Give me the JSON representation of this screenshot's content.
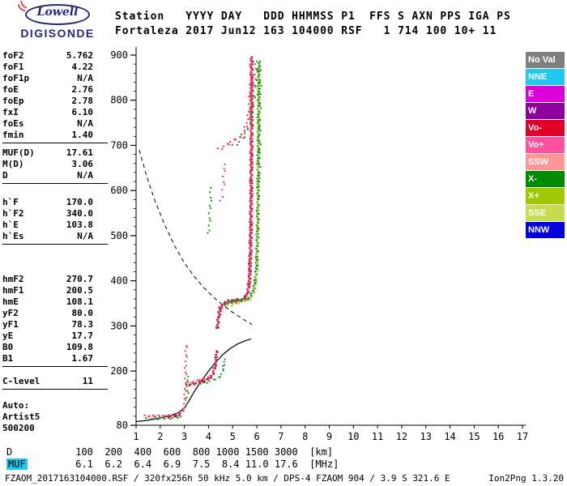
{
  "logo": {
    "top": "Lowell",
    "bottom": "DIGISONDE"
  },
  "header": {
    "line1": "Station   YYYY DAY   DDD HHMMSS P1  FFS S AXN PPS IGA PS",
    "line2": "Fortaleza 2017 Jun12 163 104000 RSF   1 714 100 10+ 11"
  },
  "params": {
    "groups": [
      {
        "rows": [
          [
            "foF2",
            "5.762"
          ],
          [
            "foF1",
            "4.22"
          ],
          [
            "foF1p",
            "N/A"
          ],
          [
            "foE",
            "2.76"
          ],
          [
            "foEp",
            "2.78"
          ],
          [
            "fxI",
            "6.10"
          ],
          [
            "foEs",
            "N/A"
          ],
          [
            "fmin",
            "1.40"
          ]
        ]
      },
      {
        "rows": [
          [
            "MUF(D)",
            "17.61"
          ],
          [
            "M(D)",
            "3.06"
          ],
          [
            "D",
            "N/A"
          ]
        ]
      },
      {
        "rows": [
          [
            "h`F",
            "170.0"
          ],
          [
            "h`F2",
            "340.0"
          ],
          [
            "h`E",
            "103.8"
          ],
          [
            "h`Es",
            "N/A"
          ]
        ]
      },
      {
        "rows": [
          [
            "hmF2",
            "270.7"
          ],
          [
            "hmF1",
            "200.5"
          ],
          [
            "hmE",
            "108.1"
          ],
          [
            "yF2",
            "80.0"
          ],
          [
            "yF1",
            "78.3"
          ],
          [
            "yE",
            "17.7"
          ],
          [
            "B0",
            "109.8"
          ],
          [
            "B1",
            "1.67"
          ]
        ]
      },
      {
        "rows": [
          [
            "C-level",
            "11"
          ]
        ]
      }
    ],
    "footer": [
      "Auto:",
      "Artist5",
      "500200"
    ]
  },
  "legend": [
    {
      "label": "No Val",
      "color": "#7F7F7F"
    },
    {
      "label": "NNE",
      "color": "#22C8F0"
    },
    {
      "label": "E",
      "color": "#D900D9"
    },
    {
      "label": "W",
      "color": "#8C00A0"
    },
    {
      "label": "Vo-",
      "color": "#E00028"
    },
    {
      "label": "Vo+",
      "color": "#FF50A0"
    },
    {
      "label": "SSW",
      "color": "#FF9696"
    },
    {
      "label": "X-",
      "color": "#008C00"
    },
    {
      "label": "X+",
      "color": "#A0C800"
    },
    {
      "label": "SSE",
      "color": "#C8DC50"
    },
    {
      "label": "NNW",
      "color": "#0000E0"
    }
  ],
  "bottom": {
    "d_row": {
      "label": "D",
      "values": [
        "100",
        "200",
        "400",
        "600",
        "800",
        "1000",
        "1500",
        "3000"
      ],
      "unit": "[km]"
    },
    "muf_row": {
      "label": "MUF",
      "values": [
        "6.1",
        "6.2",
        "6.4",
        "6.9",
        "7.5",
        "8.4",
        "11.0",
        "17.6"
      ],
      "unit": "[MHz]",
      "label_bg": "#22C8F0"
    },
    "status_left": "FZAOM_2017163104000.RSF / 320fx256h 50 kHz 5.0 km / DPS-4 FZAOM 904 / 3.9 S 321.6 E",
    "status_right": "Ion2Png 1.3.20"
  },
  "chart_data": {
    "type": "scatter",
    "title": "",
    "xlabel": "",
    "ylabel": "",
    "x_unit": "MHz",
    "y_unit": "km",
    "xlim": [
      1,
      17
    ],
    "ylim": [
      80,
      900
    ],
    "xticks": [
      1,
      2,
      3,
      4,
      5,
      6,
      7,
      8,
      9,
      10,
      11,
      12,
      13,
      14,
      15,
      16,
      17
    ],
    "yticks": [
      80,
      200,
      300,
      400,
      500,
      600,
      700,
      800,
      900
    ],
    "grid": false,
    "legend_position": "right",
    "traces": [
      {
        "name": "E-trace-O",
        "color": "#E8437A",
        "size": 2.2,
        "step": 2.6,
        "jitter": 1.3,
        "points": [
          [
            1.4,
            101
          ],
          [
            1.75,
            100
          ],
          [
            2.15,
            100
          ],
          [
            2.5,
            101
          ],
          [
            2.75,
            103
          ],
          [
            2.88,
            106
          ],
          [
            2.97,
            112
          ]
        ]
      },
      {
        "name": "E-trace-X",
        "color": "#1E8C1E",
        "size": 2,
        "step": 3,
        "jitter": 1.2,
        "points": [
          [
            1.45,
            95
          ],
          [
            1.9,
            94
          ],
          [
            2.3,
            95
          ],
          [
            2.65,
            96
          ],
          [
            2.85,
            99
          ]
        ]
      },
      {
        "name": "E-trace-core",
        "color": "#C01840",
        "size": 2.2,
        "step": 2.6,
        "jitter": 1,
        "points": [
          [
            2.25,
            99
          ],
          [
            2.55,
            100
          ],
          [
            2.78,
            102
          ]
        ]
      },
      {
        "name": "E-F-cusp-O",
        "color": "#E8437A",
        "size": 2,
        "step": 4,
        "jitter": 1.5,
        "points": [
          [
            3.0,
            116
          ],
          [
            3.02,
            134
          ],
          [
            3.04,
            154
          ],
          [
            3.05,
            176
          ],
          [
            3.06,
            198
          ],
          [
            3.07,
            222
          ],
          [
            3.08,
            244
          ],
          [
            3.09,
            256
          ]
        ]
      },
      {
        "name": "E-F-cusp-X",
        "color": "#1E8C1E",
        "size": 2,
        "step": 5,
        "jitter": 1.5,
        "points": [
          [
            3.1,
            120
          ],
          [
            3.12,
            142
          ],
          [
            3.14,
            165
          ],
          [
            3.15,
            188
          ]
        ]
      },
      {
        "name": "F1-trace-O",
        "color": "#C01840",
        "size": 2.4,
        "step": 2.2,
        "jitter": 1.2,
        "points": [
          [
            3.12,
            170
          ],
          [
            3.35,
            171
          ],
          [
            3.6,
            174
          ],
          [
            3.85,
            178
          ],
          [
            4.05,
            184
          ],
          [
            4.18,
            192
          ],
          [
            4.26,
            204
          ],
          [
            4.31,
            222
          ],
          [
            4.34,
            244
          ]
        ]
      },
      {
        "name": "F1-trace-O-pink",
        "color": "#E8437A",
        "size": 2,
        "step": 3,
        "jitter": 1.5,
        "points": [
          [
            3.18,
            176
          ],
          [
            3.5,
            178
          ],
          [
            3.85,
            183
          ],
          [
            4.1,
            190
          ],
          [
            4.22,
            200
          ],
          [
            4.3,
            218
          ]
        ]
      },
      {
        "name": "F1-trace-X",
        "color": "#1E8C1E",
        "size": 2,
        "step": 3.2,
        "jitter": 1.3,
        "points": [
          [
            3.45,
            170
          ],
          [
            3.7,
            172
          ],
          [
            3.95,
            175
          ],
          [
            4.2,
            179
          ],
          [
            4.4,
            185
          ],
          [
            4.55,
            193
          ],
          [
            4.62,
            205
          ],
          [
            4.68,
            226
          ]
        ]
      },
      {
        "name": "F2-trace-O",
        "color": "#C01840",
        "size": 2.6,
        "step": 2,
        "jitter": 1.4,
        "points": [
          [
            4.38,
            295
          ],
          [
            4.42,
            320
          ],
          [
            4.5,
            340
          ],
          [
            4.62,
            349
          ],
          [
            4.8,
            354
          ],
          [
            5.0,
            356
          ],
          [
            5.2,
            357
          ],
          [
            5.4,
            359
          ],
          [
            5.52,
            363
          ],
          [
            5.6,
            371
          ],
          [
            5.66,
            384
          ],
          [
            5.7,
            403
          ],
          [
            5.72,
            430
          ],
          [
            5.74,
            465
          ],
          [
            5.755,
            508
          ],
          [
            5.765,
            558
          ],
          [
            5.775,
            618
          ],
          [
            5.782,
            688
          ],
          [
            5.788,
            768
          ],
          [
            5.792,
            848
          ],
          [
            5.795,
            895
          ]
        ]
      },
      {
        "name": "F2-trace-O-pink",
        "color": "#E8437A",
        "size": 2.2,
        "step": 2.8,
        "jitter": 1.8,
        "points": [
          [
            4.45,
            330
          ],
          [
            4.6,
            345
          ],
          [
            4.8,
            350
          ],
          [
            5.05,
            352
          ],
          [
            5.3,
            354
          ],
          [
            5.5,
            358
          ],
          [
            5.6,
            366
          ],
          [
            5.67,
            380
          ],
          [
            5.71,
            400
          ],
          [
            5.73,
            432
          ],
          [
            5.75,
            478
          ],
          [
            5.76,
            532
          ],
          [
            5.77,
            596
          ],
          [
            5.78,
            672
          ],
          [
            5.786,
            756
          ],
          [
            5.79,
            842
          ],
          [
            5.793,
            893
          ]
        ]
      },
      {
        "name": "F2-trace-X",
        "color": "#1E8C1E",
        "size": 2.4,
        "step": 2.2,
        "jitter": 1.4,
        "points": [
          [
            4.72,
            348
          ],
          [
            4.9,
            352
          ],
          [
            5.1,
            354
          ],
          [
            5.3,
            356
          ],
          [
            5.5,
            358
          ],
          [
            5.68,
            362
          ],
          [
            5.78,
            368
          ],
          [
            5.86,
            378
          ],
          [
            5.92,
            392
          ],
          [
            5.97,
            412
          ],
          [
            6.0,
            440
          ],
          [
            6.02,
            478
          ],
          [
            6.04,
            526
          ],
          [
            6.055,
            582
          ],
          [
            6.065,
            646
          ],
          [
            6.075,
            722
          ],
          [
            6.083,
            800
          ],
          [
            6.09,
            882
          ]
        ]
      },
      {
        "name": "F2-trace-X-light",
        "color": "#A2C31E",
        "size": 2,
        "step": 3,
        "jitter": 1.8,
        "points": [
          [
            4.85,
            346
          ],
          [
            5.15,
            350
          ],
          [
            5.45,
            354
          ],
          [
            5.65,
            358
          ],
          [
            5.8,
            364
          ],
          [
            5.9,
            376
          ],
          [
            5.96,
            396
          ],
          [
            6.0,
            426
          ],
          [
            6.03,
            470
          ],
          [
            6.05,
            530
          ],
          [
            6.065,
            602
          ],
          [
            6.078,
            692
          ],
          [
            6.087,
            792
          ],
          [
            6.093,
            876
          ]
        ]
      },
      {
        "name": "F2-second-hop-O",
        "color": "#E8437A",
        "size": 2.2,
        "step": 3,
        "jitter": 2,
        "points": [
          [
            4.45,
            692
          ],
          [
            4.65,
            698
          ],
          [
            4.85,
            704
          ],
          [
            5.05,
            710
          ],
          [
            5.25,
            717
          ],
          [
            5.4,
            724
          ],
          [
            5.52,
            734
          ],
          [
            5.62,
            750
          ],
          [
            5.7,
            776
          ],
          [
            5.75,
            812
          ],
          [
            5.78,
            856
          ],
          [
            5.79,
            893
          ]
        ]
      },
      {
        "name": "F2-second-hop-X",
        "color": "#1E8C1E",
        "size": 2,
        "step": 4,
        "jitter": 2,
        "points": [
          [
            5.05,
            700
          ],
          [
            5.3,
            708
          ],
          [
            5.5,
            720
          ],
          [
            5.65,
            738
          ],
          [
            5.78,
            762
          ],
          [
            5.87,
            796
          ],
          [
            5.94,
            842
          ],
          [
            6.0,
            886
          ]
        ]
      },
      {
        "name": "F1-second-hop-X",
        "color": "#1E8C1E",
        "size": 2,
        "step": 5,
        "jitter": 1.5,
        "points": [
          [
            4.02,
            505
          ],
          [
            4.05,
            540
          ],
          [
            4.08,
            576
          ],
          [
            4.1,
            606
          ]
        ]
      },
      {
        "name": "F-second-hop-O-sparse",
        "color": "#E8437A",
        "size": 2,
        "step": 6,
        "jitter": 2,
        "points": [
          [
            4.55,
            576
          ],
          [
            4.6,
            602
          ],
          [
            4.65,
            630
          ],
          [
            4.68,
            658
          ]
        ]
      },
      {
        "name": "spread-F-X",
        "color": "#1E8C1E",
        "size": 2,
        "step": 6,
        "jitter": 2,
        "points": [
          [
            6.1,
            620
          ],
          [
            6.11,
            690
          ],
          [
            6.12,
            760
          ],
          [
            6.13,
            830
          ],
          [
            6.13,
            886
          ]
        ]
      }
    ],
    "profile_line": {
      "name": "true-height-profile",
      "style": "solid",
      "color": "#000000",
      "points": [
        [
          1.0,
          88
        ],
        [
          1.5,
          91
        ],
        [
          2.0,
          96
        ],
        [
          2.4,
          101
        ],
        [
          2.75,
          108
        ],
        [
          3.0,
          118
        ],
        [
          3.2,
          135
        ],
        [
          3.45,
          158
        ],
        [
          3.7,
          178
        ],
        [
          4.0,
          200
        ],
        [
          4.3,
          220
        ],
        [
          4.6,
          237
        ],
        [
          4.9,
          250
        ],
        [
          5.2,
          260
        ],
        [
          5.5,
          267
        ],
        [
          5.76,
          271
        ]
      ]
    },
    "muf_curve": {
      "name": "muf-transmission-curve",
      "style": "dashed",
      "color": "#000000",
      "points": [
        [
          1.13,
          690
        ],
        [
          1.45,
          630
        ],
        [
          1.8,
          575
        ],
        [
          2.2,
          522
        ],
        [
          2.6,
          477
        ],
        [
          3.0,
          440
        ],
        [
          3.4,
          410
        ],
        [
          3.8,
          385
        ],
        [
          4.2,
          364
        ],
        [
          4.6,
          346
        ],
        [
          5.0,
          330
        ],
        [
          5.4,
          316
        ],
        [
          5.8,
          303
        ]
      ]
    }
  }
}
